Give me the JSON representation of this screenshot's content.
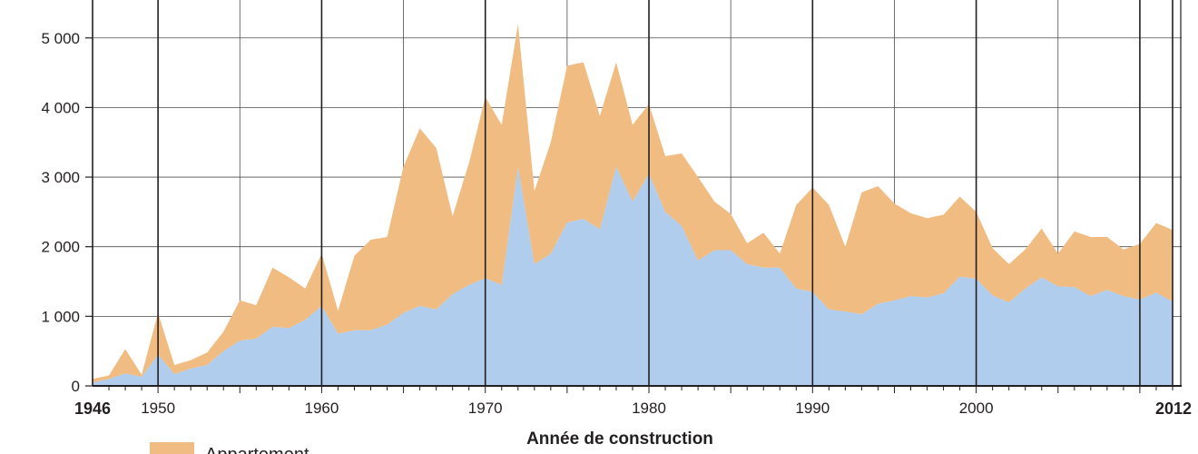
{
  "chart_data": {
    "type": "area",
    "xlabel": "Année de construction",
    "ylabel": "",
    "ylim": [
      0,
      5500
    ],
    "yticks": [
      0,
      1000,
      2000,
      3000,
      4000,
      5000
    ],
    "ytick_labels": [
      "0",
      "1 000",
      "2 000",
      "3 000",
      "4 000",
      "5 000"
    ],
    "xticks_major": [
      1950,
      1960,
      1970,
      1980,
      1990,
      2000
    ],
    "xticks_bold": [
      1946,
      2012
    ],
    "x": [
      1946,
      1947,
      1948,
      1949,
      1950,
      1951,
      1952,
      1953,
      1954,
      1955,
      1956,
      1957,
      1958,
      1959,
      1960,
      1961,
      1962,
      1963,
      1964,
      1965,
      1966,
      1967,
      1968,
      1969,
      1970,
      1971,
      1972,
      1973,
      1974,
      1975,
      1976,
      1977,
      1978,
      1979,
      1980,
      1981,
      1982,
      1983,
      1984,
      1985,
      1986,
      1987,
      1988,
      1989,
      1990,
      1991,
      1992,
      1993,
      1994,
      1995,
      1996,
      1997,
      1998,
      1999,
      2000,
      2001,
      2002,
      2003,
      2004,
      2005,
      2006,
      2007,
      2008,
      2009,
      2010,
      2011,
      2012
    ],
    "stacked": true,
    "series": [
      {
        "color": "#b0cded",
        "values": [
          50,
          100,
          180,
          130,
          450,
          170,
          250,
          300,
          500,
          650,
          680,
          850,
          830,
          950,
          1150,
          750,
          800,
          800,
          880,
          1050,
          1150,
          1100,
          1320,
          1450,
          1550,
          1450,
          3150,
          1750,
          1900,
          2350,
          2400,
          2250,
          3150,
          2650,
          3050,
          2500,
          2300,
          1800,
          1950,
          1950,
          1750,
          1700,
          1700,
          1400,
          1350,
          1100,
          1070,
          1030,
          1180,
          1230,
          1290,
          1270,
          1330,
          1570,
          1540,
          1300,
          1200,
          1400,
          1560,
          1430,
          1420,
          1290,
          1380,
          1290,
          1240,
          1340,
          1210
        ]
      },
      {
        "name": "Appartement",
        "color": "#f0bc82",
        "values": [
          50,
          50,
          350,
          30,
          600,
          130,
          120,
          180,
          280,
          580,
          480,
          850,
          730,
          450,
          750,
          330,
          1070,
          1300,
          1260,
          2100,
          2550,
          2320,
          1120,
          1750,
          2600,
          2300,
          2050,
          1050,
          1600,
          2250,
          2250,
          1630,
          1500,
          1100,
          1000,
          800,
          1040,
          1200,
          700,
          520,
          300,
          500,
          200,
          1200,
          1500,
          1500,
          930,
          1750,
          1690,
          1390,
          1190,
          1140,
          1130,
          1150,
          960,
          680,
          550,
          560,
          700,
          470,
          800,
          850,
          760,
          670,
          800,
          1000,
          1030
        ]
      }
    ]
  },
  "legend": {
    "label": "Appartement"
  }
}
